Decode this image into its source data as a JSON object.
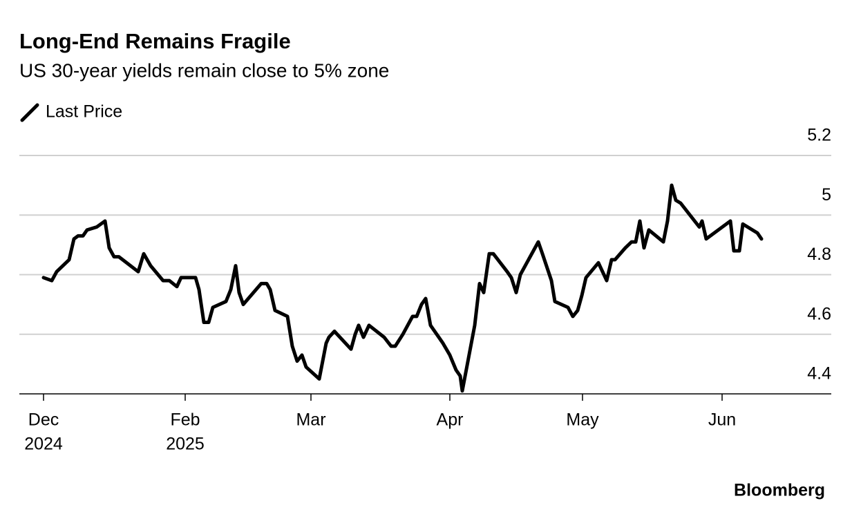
{
  "chart_data": {
    "type": "line",
    "title": "Long-End Remains Fragile",
    "subtitle": "US 30-year yields remain close to 5% zone",
    "source": "Bloomberg",
    "grid": true,
    "xlim": [
      -7,
      228
    ],
    "xticks": [
      {
        "value": 0,
        "label": "Dec"
      },
      {
        "value": 41,
        "label": "Feb"
      },
      {
        "value": 77.4,
        "label": "Mar"
      },
      {
        "value": 117.6,
        "label": "Apr"
      },
      {
        "value": 156,
        "label": "May"
      },
      {
        "value": 196.4,
        "label": "Jun"
      }
    ],
    "year_labels": [
      {
        "value": 0,
        "label": "2024"
      },
      {
        "value": 41,
        "label": "2025"
      }
    ],
    "ylim": [
      4.4,
      5.2
    ],
    "yticks": [
      4.4,
      4.6,
      4.8,
      5,
      5.2
    ],
    "x": [
      0,
      2.4,
      3.8,
      7.4,
      8.8,
      10,
      11.4,
      12.6,
      15.4,
      17.8,
      19,
      20.4,
      21.8,
      27.4,
      29,
      31,
      34.6,
      36.4,
      38.6,
      39.8,
      44,
      45,
      46.4,
      47.8,
      49,
      52.8,
      54.2,
      55.6,
      56.6,
      57.8,
      63,
      64.6,
      65.6,
      67,
      70.6,
      72,
      73.4,
      74.8,
      76,
      79.8,
      81.8,
      82.6,
      84.2,
      85,
      89,
      90.2,
      91.2,
      92.6,
      94.2,
      98.6,
      100.6,
      101.8,
      104,
      106.8,
      108,
      109.4,
      110.6,
      112,
      115.6,
      117.6,
      119.4,
      120.6,
      121.2,
      123,
      124.8,
      126.2,
      127.4,
      129,
      130.2,
      134.2,
      135.4,
      136.8,
      138,
      143.2,
      144.4,
      147,
      148,
      151.8,
      153.2,
      154.6,
      155.8,
      157,
      160.6,
      161.8,
      163,
      164.4,
      165.4,
      168.4,
      170.2,
      171.4,
      172.6,
      173.8,
      175.2,
      179.4,
      180.6,
      181.8,
      183,
      184.4,
      189.8,
      190.6,
      191.8,
      198.8,
      199.8,
      201.4,
      202.4,
      206.6,
      207.8
    ],
    "series": [
      {
        "name": "Last Price",
        "color": "#000000",
        "values": [
          4.79,
          4.78,
          4.81,
          4.85,
          4.92,
          4.93,
          4.93,
          4.95,
          4.96,
          4.98,
          4.89,
          4.86,
          4.86,
          4.81,
          4.87,
          4.83,
          4.78,
          4.78,
          4.76,
          4.79,
          4.79,
          4.75,
          4.64,
          4.64,
          4.69,
          4.71,
          4.75,
          4.83,
          4.74,
          4.7,
          4.77,
          4.77,
          4.75,
          4.68,
          4.66,
          4.56,
          4.51,
          4.53,
          4.49,
          4.45,
          4.57,
          4.59,
          4.61,
          4.6,
          4.55,
          4.6,
          4.63,
          4.59,
          4.63,
          4.59,
          4.56,
          4.56,
          4.6,
          4.66,
          4.66,
          4.7,
          4.72,
          4.63,
          4.57,
          4.53,
          4.48,
          4.46,
          4.41,
          4.52,
          4.63,
          4.77,
          4.74,
          4.87,
          4.87,
          4.81,
          4.79,
          4.74,
          4.8,
          4.91,
          4.87,
          4.78,
          4.71,
          4.69,
          4.66,
          4.68,
          4.73,
          4.79,
          4.84,
          4.81,
          4.78,
          4.85,
          4.85,
          4.89,
          4.91,
          4.91,
          4.98,
          4.89,
          4.95,
          4.91,
          4.98,
          5.1,
          5.05,
          5.04,
          4.96,
          4.98,
          4.92,
          4.98,
          4.88,
          4.88,
          4.97,
          4.94,
          4.92
        ]
      }
    ]
  }
}
